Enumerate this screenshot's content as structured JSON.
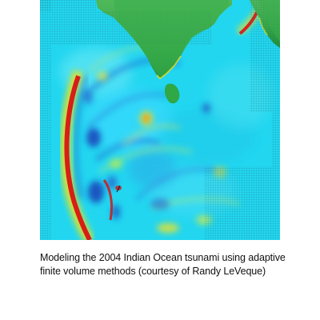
{
  "figure": {
    "caption_line1": "Modeling the 2004 Indian Ocean tsunami using adaptive",
    "caption_line2": "finite volume methods (courtesy of Randy LeVeque)"
  },
  "colors": {
    "ocean": "#22d6f0",
    "land": "#2fb24a",
    "wave_red": "#d81414",
    "wave_yellow": "#f2e21e",
    "wave_blue": "#1b3fb8",
    "grid": "#1b6a6a"
  }
}
